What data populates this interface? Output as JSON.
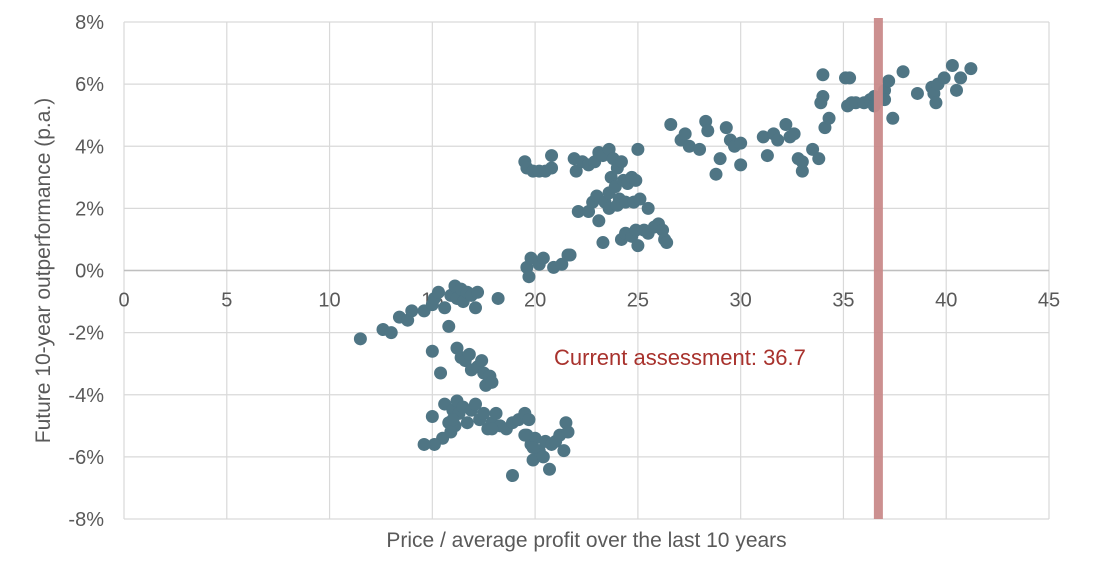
{
  "chart_data": {
    "type": "scatter",
    "title": "",
    "xlabel": "Price / average profit over the last 10 years",
    "ylabel": "Future 10-year outperformance (p.a.)",
    "xlim": [
      0,
      45
    ],
    "ylim": [
      -8,
      8
    ],
    "x_ticks": [
      0,
      5,
      10,
      15,
      20,
      25,
      30,
      35,
      40,
      45
    ],
    "x_tick_labels": [
      "0",
      "5",
      "10",
      "15",
      "20",
      "25",
      "30",
      "35",
      "40",
      "45"
    ],
    "y_ticks": [
      8,
      6,
      4,
      2,
      0,
      -2,
      -4,
      -6,
      -8
    ],
    "y_tick_labels": [
      "8%",
      "6%",
      "4%",
      "2%",
      "0%",
      "-2%",
      "-4%",
      "-6%",
      "-8%"
    ],
    "grid": true,
    "point_color": "#4f7584",
    "marker_color": "#c98a8a",
    "annotation_color": "#a8322d",
    "grid_color": "#d9d9d9",
    "annotation": {
      "text": "Current assessment: 36.7",
      "x_value": 36.7
    },
    "points": [
      [
        11.5,
        -2.2
      ],
      [
        12.6,
        -1.9
      ],
      [
        13.0,
        -2.0
      ],
      [
        13.4,
        -1.5
      ],
      [
        13.8,
        -1.6
      ],
      [
        14.0,
        -1.3
      ],
      [
        14.6,
        -1.3
      ],
      [
        15.0,
        -1.1
      ],
      [
        15.1,
        -0.9
      ],
      [
        15.3,
        -0.7
      ],
      [
        15.6,
        -1.2
      ],
      [
        15.9,
        -0.8
      ],
      [
        16.1,
        -0.5
      ],
      [
        16.2,
        -0.9
      ],
      [
        16.4,
        -0.6
      ],
      [
        16.5,
        -1.0
      ],
      [
        16.7,
        -0.7
      ],
      [
        16.9,
        -0.8
      ],
      [
        17.2,
        -0.7
      ],
      [
        17.1,
        -1.2
      ],
      [
        18.2,
        -0.9
      ],
      [
        15.8,
        -1.8
      ],
      [
        15.0,
        -2.6
      ],
      [
        15.4,
        -3.3
      ],
      [
        16.2,
        -2.5
      ],
      [
        16.4,
        -2.8
      ],
      [
        16.6,
        -2.9
      ],
      [
        16.8,
        -2.7
      ],
      [
        16.9,
        -3.2
      ],
      [
        17.2,
        -3.1
      ],
      [
        17.4,
        -2.9
      ],
      [
        17.5,
        -3.3
      ],
      [
        17.6,
        -3.7
      ],
      [
        17.8,
        -3.4
      ],
      [
        17.9,
        -3.6
      ],
      [
        15.0,
        -4.7
      ],
      [
        15.6,
        -4.3
      ],
      [
        15.8,
        -4.9
      ],
      [
        16.0,
        -4.5
      ],
      [
        16.2,
        -4.2
      ],
      [
        16.3,
        -4.6
      ],
      [
        16.5,
        -4.4
      ],
      [
        16.7,
        -4.9
      ],
      [
        16.9,
        -4.5
      ],
      [
        17.1,
        -4.3
      ],
      [
        17.3,
        -4.8
      ],
      [
        17.5,
        -4.6
      ],
      [
        17.7,
        -5.1
      ],
      [
        17.9,
        -4.9
      ],
      [
        18.1,
        -4.6
      ],
      [
        18.3,
        -5.0
      ],
      [
        18.6,
        -5.1
      ],
      [
        18.9,
        -4.9
      ],
      [
        19.2,
        -4.8
      ],
      [
        19.5,
        -4.6
      ],
      [
        19.6,
        -5.3
      ],
      [
        19.8,
        -5.6
      ],
      [
        19.9,
        -6.1
      ],
      [
        20.0,
        -5.4
      ],
      [
        20.2,
        -5.8
      ],
      [
        20.4,
        -6.0
      ],
      [
        20.5,
        -5.5
      ],
      [
        20.7,
        -6.4
      ],
      [
        20.8,
        -5.6
      ],
      [
        21.0,
        -5.5
      ],
      [
        21.2,
        -5.3
      ],
      [
        21.4,
        -5.8
      ],
      [
        21.5,
        -4.9
      ],
      [
        21.6,
        -5.2
      ],
      [
        16.1,
        -5.0
      ],
      [
        15.9,
        -5.2
      ],
      [
        16.0,
        -4.8
      ],
      [
        15.5,
        -5.4
      ],
      [
        15.1,
        -5.6
      ],
      [
        14.6,
        -5.6
      ],
      [
        19.5,
        -5.3
      ],
      [
        19.9,
        -5.7
      ],
      [
        18.9,
        -6.6
      ],
      [
        19.7,
        -4.8
      ],
      [
        17.9,
        -5.1
      ],
      [
        19.5,
        3.5
      ],
      [
        19.6,
        3.3
      ],
      [
        19.9,
        3.2
      ],
      [
        20.2,
        3.2
      ],
      [
        20.5,
        3.2
      ],
      [
        20.8,
        3.3
      ],
      [
        20.8,
        3.7
      ],
      [
        21.9,
        3.6
      ],
      [
        22.0,
        3.2
      ],
      [
        22.3,
        3.5
      ],
      [
        22.6,
        3.4
      ],
      [
        22.9,
        3.5
      ],
      [
        23.1,
        3.8
      ],
      [
        23.3,
        3.7
      ],
      [
        23.6,
        3.9
      ],
      [
        23.8,
        3.6
      ],
      [
        24.0,
        3.3
      ],
      [
        24.2,
        3.5
      ],
      [
        25.0,
        3.9
      ],
      [
        22.1,
        1.9
      ],
      [
        22.6,
        1.9
      ],
      [
        22.8,
        2.2
      ],
      [
        23.0,
        2.4
      ],
      [
        23.1,
        1.6
      ],
      [
        23.4,
        2.2
      ],
      [
        23.6,
        2.5
      ],
      [
        23.7,
        3.0
      ],
      [
        23.9,
        2.7
      ],
      [
        24.1,
        2.3
      ],
      [
        24.3,
        2.9
      ],
      [
        24.5,
        2.8
      ],
      [
        24.7,
        3.0
      ],
      [
        24.9,
        2.9
      ],
      [
        23.6,
        2.0
      ],
      [
        24.0,
        2.1
      ],
      [
        24.4,
        2.2
      ],
      [
        24.8,
        2.2
      ],
      [
        25.1,
        2.3
      ],
      [
        25.5,
        2.0
      ],
      [
        19.6,
        0.1
      ],
      [
        19.8,
        0.4
      ],
      [
        19.7,
        -0.2
      ],
      [
        20.2,
        0.2
      ],
      [
        20.4,
        0.4
      ],
      [
        20.9,
        0.1
      ],
      [
        21.3,
        0.2
      ],
      [
        21.7,
        0.5
      ],
      [
        21.6,
        0.5
      ],
      [
        23.3,
        0.9
      ],
      [
        24.2,
        1.0
      ],
      [
        24.4,
        1.2
      ],
      [
        24.7,
        1.1
      ],
      [
        24.9,
        1.3
      ],
      [
        25.0,
        0.8
      ],
      [
        25.3,
        1.3
      ],
      [
        25.5,
        1.2
      ],
      [
        25.8,
        1.4
      ],
      [
        26.0,
        1.5
      ],
      [
        26.2,
        1.3
      ],
      [
        26.3,
        1.0
      ],
      [
        26.4,
        0.9
      ],
      [
        26.6,
        4.7
      ],
      [
        27.1,
        4.2
      ],
      [
        27.3,
        4.4
      ],
      [
        27.5,
        4.0
      ],
      [
        28.0,
        3.9
      ],
      [
        28.3,
        4.8
      ],
      [
        28.4,
        4.5
      ],
      [
        28.8,
        3.1
      ],
      [
        29.0,
        3.6
      ],
      [
        29.3,
        4.6
      ],
      [
        29.5,
        4.2
      ],
      [
        29.7,
        4.0
      ],
      [
        30.0,
        3.4
      ],
      [
        30.0,
        4.1
      ],
      [
        31.1,
        4.3
      ],
      [
        31.3,
        3.7
      ],
      [
        31.6,
        4.4
      ],
      [
        31.8,
        4.2
      ],
      [
        32.2,
        4.7
      ],
      [
        32.4,
        4.3
      ],
      [
        32.6,
        4.4
      ],
      [
        32.8,
        3.6
      ],
      [
        33.0,
        3.2
      ],
      [
        33.0,
        3.5
      ],
      [
        33.5,
        3.9
      ],
      [
        33.8,
        3.6
      ],
      [
        34.0,
        6.3
      ],
      [
        34.0,
        5.6
      ],
      [
        33.9,
        5.4
      ],
      [
        34.1,
        4.6
      ],
      [
        34.3,
        4.9
      ],
      [
        35.1,
        6.2
      ],
      [
        35.3,
        6.2
      ],
      [
        35.2,
        5.3
      ],
      [
        35.4,
        5.4
      ],
      [
        35.6,
        5.4
      ],
      [
        36.0,
        5.4
      ],
      [
        36.3,
        5.5
      ],
      [
        36.5,
        5.6
      ],
      [
        36.5,
        5.3
      ],
      [
        37.0,
        5.8
      ],
      [
        37.0,
        5.5
      ],
      [
        37.2,
        6.1
      ],
      [
        37.4,
        4.9
      ],
      [
        37.9,
        6.4
      ],
      [
        38.6,
        5.7
      ],
      [
        39.3,
        5.9
      ],
      [
        39.4,
        5.7
      ],
      [
        39.5,
        5.4
      ],
      [
        39.6,
        6.0
      ],
      [
        39.9,
        6.2
      ],
      [
        40.3,
        6.6
      ],
      [
        40.5,
        5.8
      ],
      [
        40.7,
        6.2
      ],
      [
        41.2,
        6.5
      ]
    ]
  }
}
